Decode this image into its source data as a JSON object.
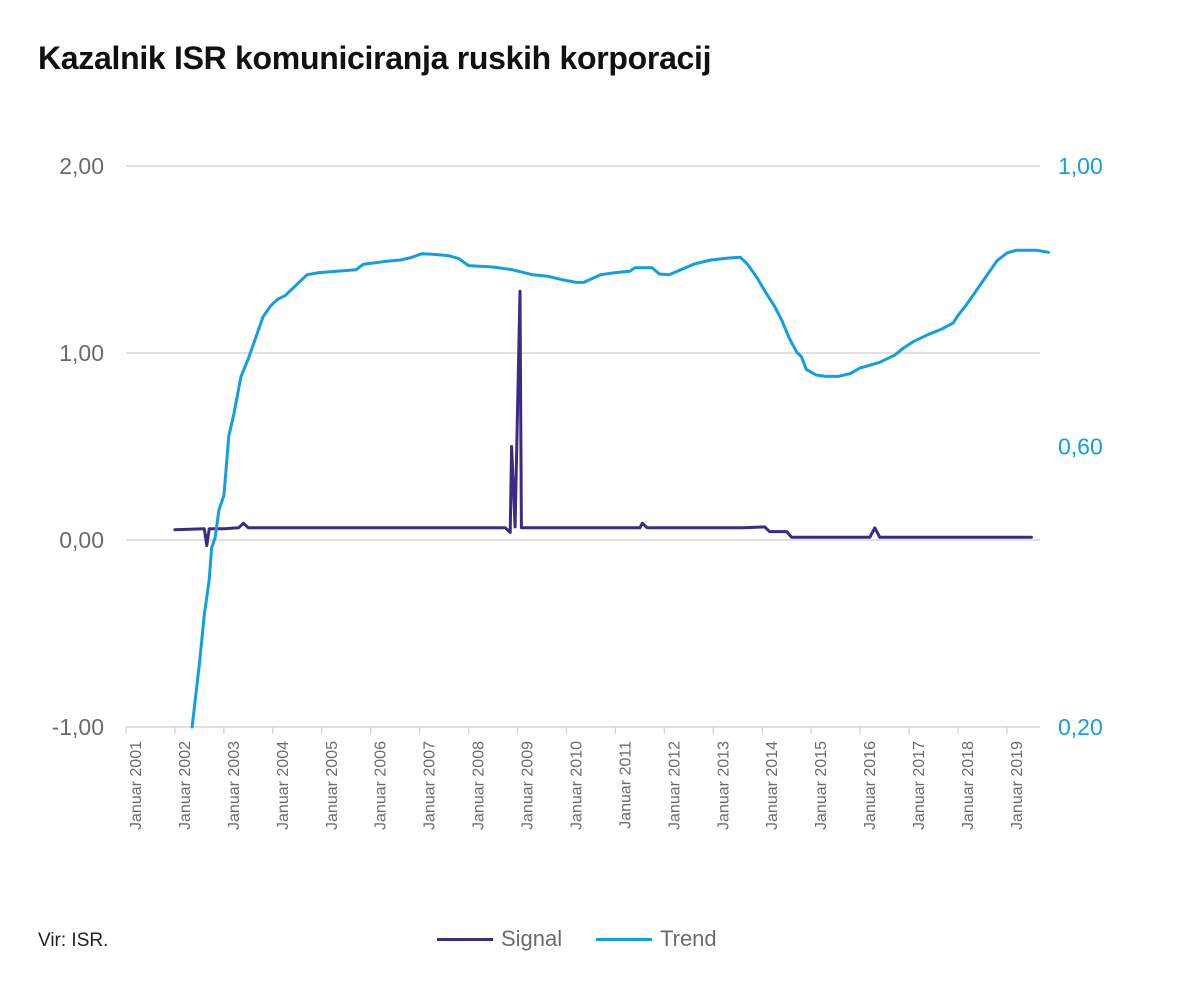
{
  "title": "Kazalnik ISR komuniciranja ruskih korporacij",
  "source": "Vir: ISR.",
  "colors": {
    "signal": "#3d2a84",
    "trend": "#129fe0",
    "grid": "#cfcfcf",
    "left_axis_text": "#6b6b6b",
    "right_axis_text": "#129fe0"
  },
  "chart_data": {
    "type": "line",
    "title": "Kazalnik ISR komuniciranja ruskih korporacij",
    "x_tick_labels": [
      "Januar 2001",
      "Januar 2002",
      "Januar 2003",
      "Januar 2004",
      "Januar 2005",
      "Januar 2006",
      "Januar 2007",
      "Januar 2008",
      "Januar 2009",
      "Januar 2010",
      "Januar 2011",
      "Januar 2012",
      "Januar 2013",
      "Januar 2014",
      "Januar 2015",
      "Januar 2016",
      "Januar 2017",
      "Januar 2018",
      "Januar 2019"
    ],
    "x_range": [
      2001.0,
      2019.85
    ],
    "y_left": {
      "ticks": [
        "2,00",
        "1,00",
        "0,00",
        "-1,00"
      ],
      "tick_values": [
        2,
        1,
        0,
        -1
      ],
      "range": [
        -1,
        2
      ]
    },
    "y_right": {
      "ticks": [
        "1,00",
        "0,60",
        "0,20"
      ],
      "tick_values": [
        1.0,
        0.6,
        0.2
      ],
      "range": [
        0.2,
        1.0
      ]
    },
    "grid": true,
    "legend_position": "bottom",
    "series": [
      {
        "name": "Signal",
        "axis": "left",
        "color": "#3d2a84",
        "x": [
          2002.0,
          2002.6,
          2002.65,
          2002.7,
          2003.0,
          2003.3,
          2003.4,
          2003.5,
          2008.75,
          2008.85,
          2008.88,
          2008.95,
          2009.05,
          2009.08,
          2009.5,
          2011.5,
          2011.55,
          2011.65,
          2013.6,
          2014.05,
          2014.15,
          2014.5,
          2014.6,
          2016.2,
          2016.3,
          2016.4,
          2019.5
        ],
        "y": [
          0.055,
          0.06,
          -0.03,
          0.06,
          0.06,
          0.065,
          0.09,
          0.065,
          0.065,
          0.04,
          0.5,
          0.07,
          1.33,
          0.065,
          0.065,
          0.065,
          0.09,
          0.065,
          0.065,
          0.07,
          0.045,
          0.045,
          0.015,
          0.015,
          0.065,
          0.015,
          0.015
        ]
      },
      {
        "name": "Trend",
        "axis": "right",
        "color": "#129fe0",
        "x": [
          2002.35,
          2002.5,
          2002.6,
          2002.7,
          2002.75,
          2002.82,
          2002.9,
          2003.0,
          2003.1,
          2003.2,
          2003.35,
          2003.5,
          2003.65,
          2003.8,
          2003.95,
          2004.1,
          2004.25,
          2004.55,
          2004.7,
          2004.95,
          2005.3,
          2005.7,
          2005.85,
          2006.3,
          2006.6,
          2006.8,
          2007.05,
          2007.3,
          2007.6,
          2007.8,
          2008.0,
          2008.5,
          2008.9,
          2009.3,
          2009.6,
          2009.9,
          2010.2,
          2010.35,
          2010.7,
          2011.0,
          2011.3,
          2011.4,
          2011.75,
          2011.9,
          2012.1,
          2012.3,
          2012.6,
          2012.95,
          2013.35,
          2013.55,
          2013.7,
          2013.9,
          2014.05,
          2014.25,
          2014.4,
          2014.55,
          2014.7,
          2014.8,
          2014.9,
          2015.1,
          2015.3,
          2015.55,
          2015.8,
          2016.0,
          2016.4,
          2016.7,
          2016.9,
          2017.1,
          2017.4,
          2017.65,
          2017.9,
          2018.0,
          2018.15,
          2018.3,
          2018.45,
          2018.6,
          2018.8,
          2019.0,
          2019.2,
          2019.6,
          2019.85
        ],
        "y": [
          0.2,
          0.29,
          0.36,
          0.41,
          0.455,
          0.47,
          0.51,
          0.53,
          0.615,
          0.645,
          0.7,
          0.725,
          0.755,
          0.785,
          0.8,
          0.81,
          0.815,
          0.835,
          0.845,
          0.848,
          0.85,
          0.852,
          0.86,
          0.864,
          0.866,
          0.869,
          0.875,
          0.874,
          0.872,
          0.868,
          0.858,
          0.856,
          0.852,
          0.845,
          0.843,
          0.838,
          0.834,
          0.834,
          0.845,
          0.848,
          0.85,
          0.855,
          0.855,
          0.846,
          0.845,
          0.851,
          0.86,
          0.866,
          0.869,
          0.87,
          0.86,
          0.84,
          0.822,
          0.8,
          0.78,
          0.755,
          0.735,
          0.728,
          0.71,
          0.702,
          0.7,
          0.7,
          0.704,
          0.712,
          0.72,
          0.73,
          0.741,
          0.75,
          0.76,
          0.767,
          0.776,
          0.787,
          0.8,
          0.815,
          0.83,
          0.845,
          0.865,
          0.876,
          0.88,
          0.88,
          0.877
        ]
      }
    ]
  }
}
